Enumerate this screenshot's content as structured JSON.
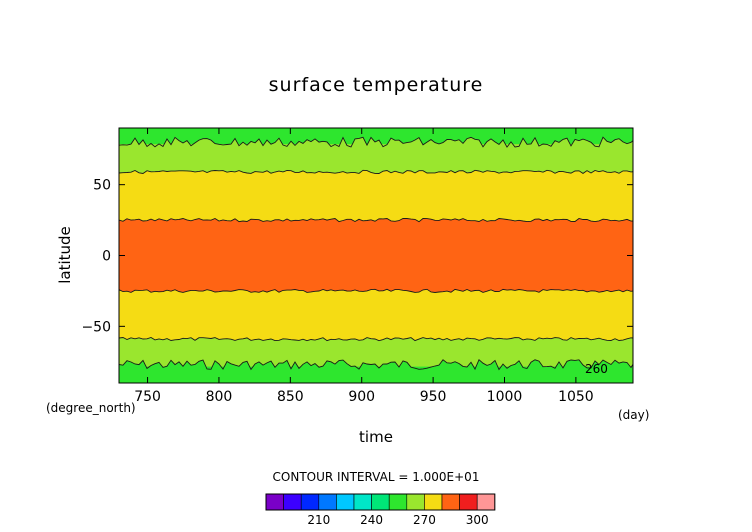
{
  "chart_data": {
    "type": "heatmap",
    "title": "surface temperature",
    "xlabel": "time",
    "ylabel": "latitude",
    "x_unit": "(day)",
    "y_unit": "(degree_north)",
    "xlim": [
      730,
      1090
    ],
    "ylim": [
      -90,
      90
    ],
    "x_ticks": [
      750,
      800,
      850,
      900,
      950,
      1000,
      1050
    ],
    "y_ticks": [
      -50,
      0,
      50
    ],
    "contour_label": "260",
    "contour_label_point": {
      "x": 1072,
      "y": -78
    },
    "bands": [
      {
        "from_lat": -90,
        "to_lat": -77,
        "color": "#2ee62e",
        "range": [
          250,
          260
        ]
      },
      {
        "from_lat": -77,
        "to_lat": -59,
        "color": "#9ae62e",
        "range": [
          260,
          270
        ]
      },
      {
        "from_lat": -59,
        "to_lat": -25,
        "color": "#f5dc14",
        "range": [
          270,
          280
        ]
      },
      {
        "from_lat": -25,
        "to_lat": 25,
        "color": "#ff6414",
        "range": [
          280,
          290
        ]
      },
      {
        "from_lat": 25,
        "to_lat": 59,
        "color": "#f5dc14",
        "range": [
          270,
          280
        ]
      },
      {
        "from_lat": 59,
        "to_lat": 80,
        "color": "#9ae62e",
        "range": [
          260,
          270
        ]
      },
      {
        "from_lat": 80,
        "to_lat": 90,
        "color": "#2ee62e",
        "range": [
          250,
          260
        ]
      }
    ],
    "contour_interval_text": "CONTOUR INTERVAL = 1.000E+01",
    "colorbar": {
      "colors": [
        "#7a00c8",
        "#3c00ff",
        "#0028ff",
        "#0078ff",
        "#00c8ff",
        "#00e6c8",
        "#00e678",
        "#2ee62e",
        "#9ae62e",
        "#f5dc14",
        "#ff6414",
        "#f01e1e",
        "#ff9696"
      ],
      "ticks": [
        210,
        240,
        270,
        300
      ]
    }
  }
}
